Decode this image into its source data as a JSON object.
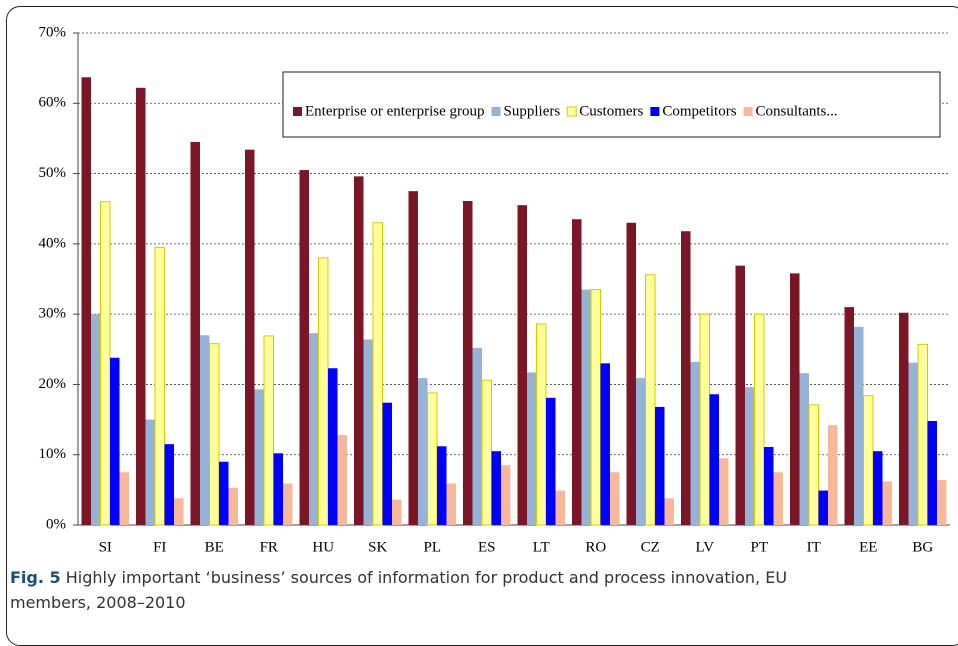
{
  "chart_data": {
    "type": "bar",
    "caption_label": "Fig. 5",
    "caption": "Highly important ‘business’ sources of information for product and process innovation, EU members, 2008–2010",
    "categories": [
      "SI",
      "FI",
      "BE",
      "FR",
      "HU",
      "SK",
      "PL",
      "ES",
      "LT",
      "RO",
      "CZ",
      "LV",
      "PT",
      "IT",
      "EE",
      "BG"
    ],
    "series": [
      {
        "name": "Enterprise or enterprise group",
        "color": "#7b1626",
        "values": [
          63.7,
          62.2,
          54.5,
          53.4,
          50.5,
          49.6,
          47.5,
          46.1,
          45.5,
          43.5,
          43,
          41.8,
          36.9,
          35.8,
          31,
          30.2
        ]
      },
      {
        "name": "Suppliers",
        "color": "#95b3d7",
        "values": [
          30,
          15,
          27,
          19.3,
          27.3,
          26.4,
          20.9,
          25.2,
          21.7,
          33.5,
          20.9,
          23.2,
          19.6,
          21.6,
          28.2,
          23.1
        ]
      },
      {
        "name": "Customers",
        "color": "#ffff99",
        "values": [
          46,
          39.5,
          25.8,
          26.9,
          38,
          43,
          18.8,
          20.6,
          28.6,
          33.5,
          35.6,
          30,
          30,
          17.1,
          18.4,
          25.7
        ]
      },
      {
        "name": "Competitors",
        "color": "#0000ff",
        "values": [
          23.8,
          11.5,
          9,
          10.2,
          22.3,
          17.4,
          11.2,
          10.5,
          18.1,
          23,
          16.8,
          18.6,
          11.1,
          4.9,
          10.5,
          14.8
        ]
      },
      {
        "name": "Consultants...",
        "color": "#f7b89a",
        "values": [
          7.5,
          3.8,
          5.3,
          5.9,
          12.8,
          3.6,
          5.9,
          8.5,
          4.9,
          7.5,
          3.8,
          9.5,
          7.5,
          14.2,
          6.2,
          6.4
        ]
      }
    ],
    "ylim": [
      0,
      70
    ],
    "yticks": [
      {
        "value": 0,
        "label": "0%"
      },
      {
        "value": 10,
        "label": "10%"
      },
      {
        "value": 20,
        "label": "20%"
      },
      {
        "value": 30,
        "label": "30%"
      },
      {
        "value": 40,
        "label": "40%"
      },
      {
        "value": 50,
        "label": "50%"
      },
      {
        "value": 60,
        "label": "60%"
      },
      {
        "value": 70,
        "label": "70%"
      }
    ],
    "grid": true
  }
}
